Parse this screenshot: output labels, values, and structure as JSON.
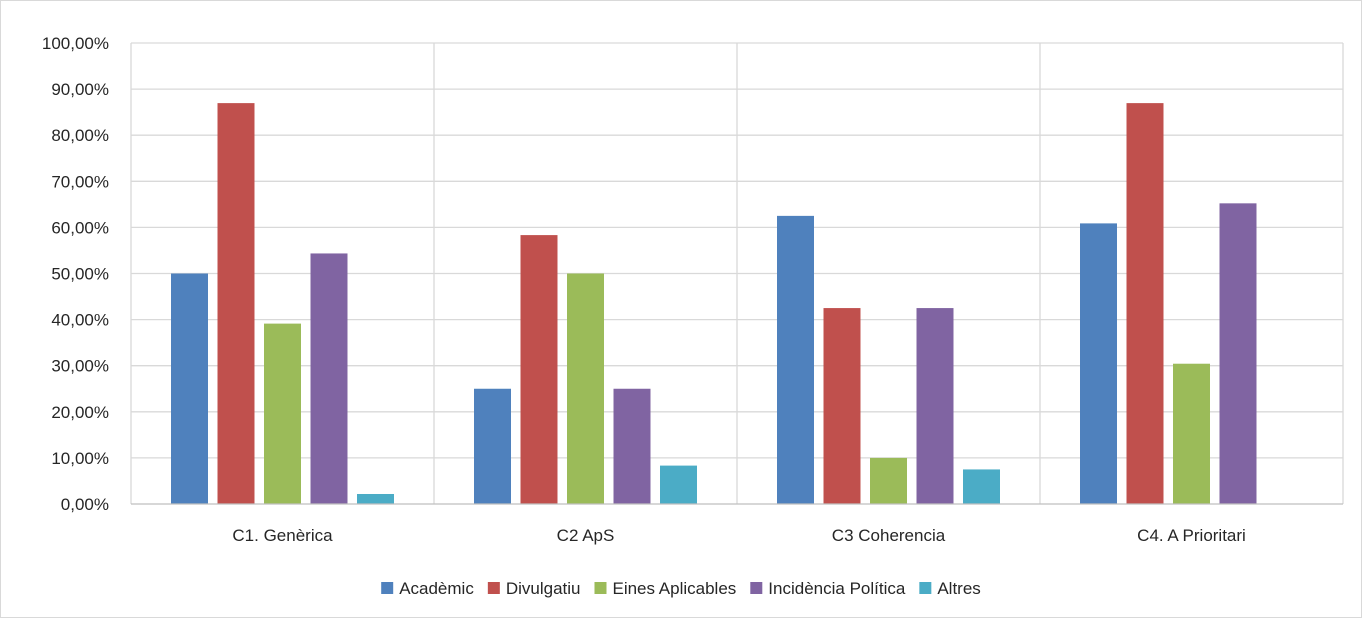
{
  "chart_data": {
    "type": "bar",
    "categories": [
      "C1. Genèrica",
      "C2 ApS",
      "C3 Coherencia",
      "C4. A Prioritari"
    ],
    "series": [
      {
        "name": "Acadèmic",
        "color": "#4F81BD",
        "values": [
          50.0,
          25.0,
          62.5,
          60.87
        ]
      },
      {
        "name": "Divulgatiu",
        "color": "#C0504D",
        "values": [
          86.96,
          58.33,
          42.5,
          86.96
        ]
      },
      {
        "name": "Eines Aplicables",
        "color": "#9BBB59",
        "values": [
          39.13,
          50.0,
          10.0,
          30.43
        ]
      },
      {
        "name": "Incidència Política",
        "color": "#8064A2",
        "values": [
          54.35,
          25.0,
          42.5,
          65.22
        ]
      },
      {
        "name": "Altres",
        "color": "#4BACC6",
        "values": [
          2.17,
          8.33,
          7.5,
          0.0
        ]
      }
    ],
    "y_ticks": [
      "0,00%",
      "10,00%",
      "20,00%",
      "30,00%",
      "40,00%",
      "50,00%",
      "60,00%",
      "70,00%",
      "80,00%",
      "90,00%",
      "100,00%"
    ],
    "ylim": [
      0,
      100
    ],
    "title": "",
    "xlabel": "",
    "ylabel": "",
    "grid": true,
    "legend_position": "bottom"
  }
}
